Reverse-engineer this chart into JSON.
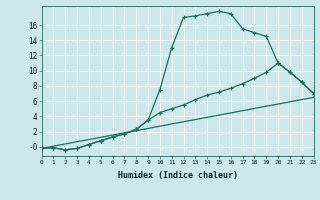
{
  "xlabel": "Humidex (Indice chaleur)",
  "bg_color": "#cce8ec",
  "grid_color": "#ffffff",
  "line_color": "#1a7060",
  "line1_x": [
    0,
    1,
    2,
    3,
    4,
    5,
    6,
    7,
    8,
    9,
    10,
    11,
    12,
    13,
    14,
    15,
    16,
    17,
    18,
    19,
    20,
    21,
    22,
    23
  ],
  "line1_y": [
    -0.2,
    -0.1,
    -0.4,
    -0.2,
    0.3,
    0.8,
    1.3,
    1.7,
    2.3,
    3.5,
    7.5,
    13.0,
    17.0,
    17.2,
    17.5,
    17.8,
    17.5,
    15.5,
    15.0,
    14.5,
    11.0,
    9.8,
    8.5,
    7.0
  ],
  "line2_x": [
    0,
    1,
    2,
    3,
    4,
    5,
    6,
    7,
    8,
    9,
    10,
    11,
    12,
    13,
    14,
    15,
    16,
    17,
    18,
    19,
    20,
    21,
    22,
    23
  ],
  "line2_y": [
    -0.2,
    -0.1,
    -0.4,
    -0.2,
    0.3,
    0.8,
    1.3,
    1.7,
    2.3,
    3.5,
    4.5,
    5.0,
    5.5,
    6.2,
    6.8,
    7.2,
    7.7,
    8.3,
    9.0,
    9.8,
    11.0,
    9.8,
    8.5,
    7.0
  ],
  "line3_x": [
    0,
    23
  ],
  "line3_y": [
    -0.2,
    6.5
  ],
  "xlim": [
    0,
    23
  ],
  "ylim": [
    -1.2,
    18.5
  ],
  "yticks": [
    0,
    2,
    4,
    6,
    8,
    10,
    12,
    14,
    16
  ],
  "ytick_labels": [
    "-0",
    "2",
    "4",
    "6",
    "8",
    "10",
    "12",
    "14",
    "16"
  ],
  "xticks": [
    0,
    1,
    2,
    3,
    4,
    5,
    6,
    7,
    8,
    9,
    10,
    11,
    12,
    13,
    14,
    15,
    16,
    17,
    18,
    19,
    20,
    21,
    22,
    23
  ]
}
